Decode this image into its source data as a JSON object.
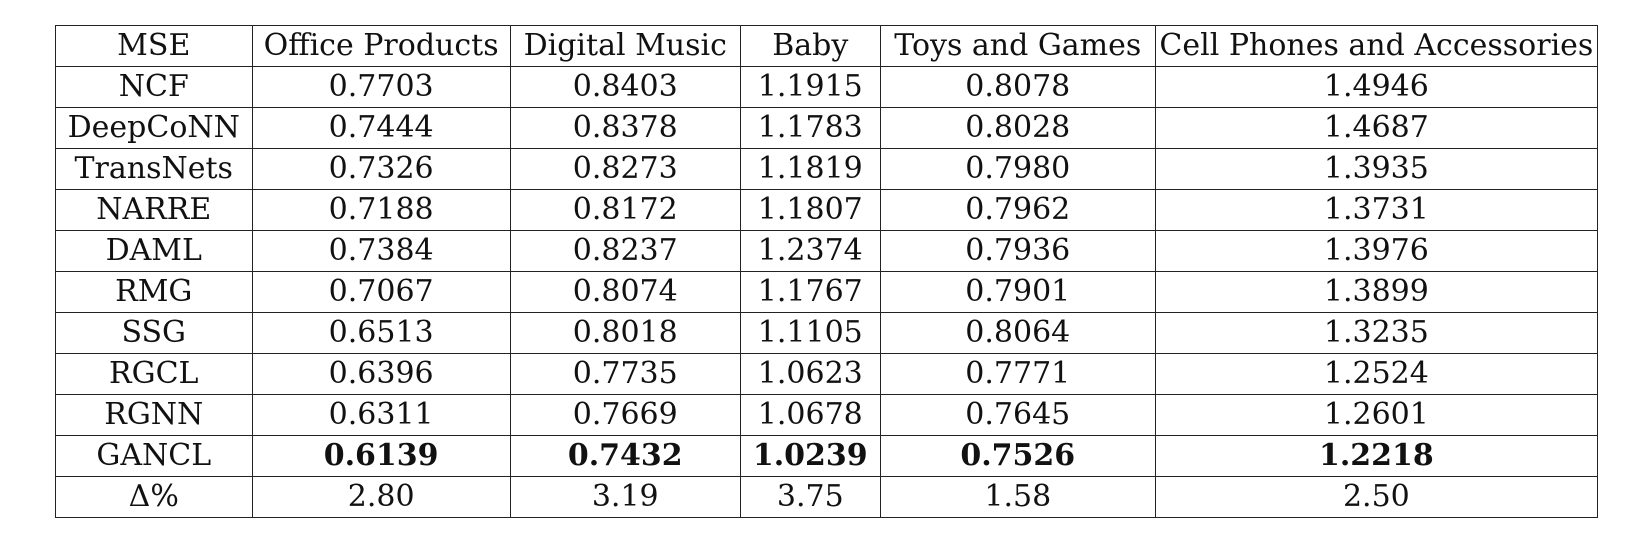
{
  "table": {
    "headers": [
      "MSE",
      "Office Products",
      "Digital Music",
      "Baby",
      "Toys and Games",
      "Cell Phones and Accessories"
    ],
    "rows": [
      {
        "model": "NCF",
        "values": [
          "0.7703",
          "0.8403",
          "1.1915",
          "0.8078",
          "1.4946"
        ],
        "bold": false
      },
      {
        "model": "DeepCoNN",
        "values": [
          "0.7444",
          "0.8378",
          "1.1783",
          "0.8028",
          "1.4687"
        ],
        "bold": false
      },
      {
        "model": "TransNets",
        "values": [
          "0.7326",
          "0.8273",
          "1.1819",
          "0.7980",
          "1.3935"
        ],
        "bold": false
      },
      {
        "model": "NARRE",
        "values": [
          "0.7188",
          "0.8172",
          "1.1807",
          "0.7962",
          "1.3731"
        ],
        "bold": false
      },
      {
        "model": "DAML",
        "values": [
          "0.7384",
          "0.8237",
          "1.2374",
          "0.7936",
          "1.3976"
        ],
        "bold": false
      },
      {
        "model": "RMG",
        "values": [
          "0.7067",
          "0.8074",
          "1.1767",
          "0.7901",
          "1.3899"
        ],
        "bold": false
      },
      {
        "model": "SSG",
        "values": [
          "0.6513",
          "0.8018",
          "1.1105",
          "0.8064",
          "1.3235"
        ],
        "bold": false
      },
      {
        "model": "RGCL",
        "values": [
          "0.6396",
          "0.7735",
          "1.0623",
          "0.7771",
          "1.2524"
        ],
        "bold": false
      },
      {
        "model": "RGNN",
        "values": [
          "0.6311",
          "0.7669",
          "1.0678",
          "0.7645",
          "1.2601"
        ],
        "bold": false
      },
      {
        "model": "GANCL",
        "values": [
          "0.6139",
          "0.7432",
          "1.0239",
          "0.7526",
          "1.2218"
        ],
        "bold": true
      },
      {
        "model": "Δ%",
        "values": [
          "2.80",
          "3.19",
          "3.75",
          "1.58",
          "2.50"
        ],
        "bold": false
      }
    ]
  }
}
